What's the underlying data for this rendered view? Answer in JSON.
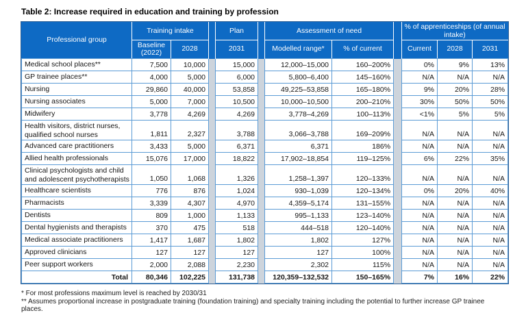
{
  "page": {
    "title": "Table 2: Increase required in education and training by profession"
  },
  "table": {
    "header": {
      "professional_group": "Professional group",
      "training_intake": "Training intake",
      "baseline": "Baseline (2022)",
      "col_2028": "2028",
      "plan": "Plan",
      "plan_2031": "2031",
      "assessment": "Assessment of need",
      "modelled_range": "Modelled range*",
      "pct_of_current": "% of current",
      "apprenticeships": "% of apprenticeships (of annual intake)",
      "appr_current": "Current",
      "appr_2028": "2028",
      "appr_2031": "2031"
    },
    "rows": [
      {
        "label": "Medical school places**",
        "baseline": "7,500",
        "y2028": "10,000",
        "plan2031": "15,000",
        "modelled": "12,000–15,000",
        "pct_current": "160–200%",
        "appr_current": "0%",
        "appr_2028": "9%",
        "appr_2031": "13%"
      },
      {
        "label": "GP trainee places**",
        "baseline": "4,000",
        "y2028": "5,000",
        "plan2031": "6,000",
        "modelled": "5,800–6,400",
        "pct_current": "145–160%",
        "appr_current": "N/A",
        "appr_2028": "N/A",
        "appr_2031": "N/A"
      },
      {
        "label": "Nursing",
        "baseline": "29,860",
        "y2028": "40,000",
        "plan2031": "53,858",
        "modelled": "49,225–53,858",
        "pct_current": "165–180%",
        "appr_current": "9%",
        "appr_2028": "20%",
        "appr_2031": "28%"
      },
      {
        "label": "Nursing associates",
        "baseline": "5,000",
        "y2028": "7,000",
        "plan2031": "10,500",
        "modelled": "10,000–10,500",
        "pct_current": "200–210%",
        "appr_current": "30%",
        "appr_2028": "50%",
        "appr_2031": "50%"
      },
      {
        "label": "Midwifery",
        "baseline": "3,778",
        "y2028": "4,269",
        "plan2031": "4,269",
        "modelled": "3,778–4,269",
        "pct_current": "100–113%",
        "appr_current": "<1%",
        "appr_2028": "5%",
        "appr_2031": "5%"
      },
      {
        "label": "Health visitors, district nurses, qualified school nurses",
        "baseline": "1,811",
        "y2028": "2,327",
        "plan2031": "3,788",
        "modelled": "3,066–3,788",
        "pct_current": "169–209%",
        "appr_current": "N/A",
        "appr_2028": "N/A",
        "appr_2031": "N/A"
      },
      {
        "label": "Advanced care practitioners",
        "baseline": "3,433",
        "y2028": "5,000",
        "plan2031": "6,371",
        "modelled": "6,371",
        "pct_current": "186%",
        "appr_current": "N/A",
        "appr_2028": "N/A",
        "appr_2031": "N/A"
      },
      {
        "label": "Allied health professionals",
        "baseline": "15,076",
        "y2028": "17,000",
        "plan2031": "18,822",
        "modelled": "17,902–18,854",
        "pct_current": "119–125%",
        "appr_current": "6%",
        "appr_2028": "22%",
        "appr_2031": "35%"
      },
      {
        "label": "Clinical psychologists and child and adolescent psychotherapists",
        "baseline": "1,050",
        "y2028": "1,068",
        "plan2031": "1,326",
        "modelled": "1,258–1,397",
        "pct_current": "120–133%",
        "appr_current": "N/A",
        "appr_2028": "N/A",
        "appr_2031": "N/A"
      },
      {
        "label": "Healthcare scientists",
        "baseline": "776",
        "y2028": "876",
        "plan2031": "1,024",
        "modelled": "930–1,039",
        "pct_current": "120–134%",
        "appr_current": "0%",
        "appr_2028": "20%",
        "appr_2031": "40%"
      },
      {
        "label": "Pharmacists",
        "baseline": "3,339",
        "y2028": "4,307",
        "plan2031": "4,970",
        "modelled": "4,359–5,174",
        "pct_current": "131–155%",
        "appr_current": "N/A",
        "appr_2028": "N/A",
        "appr_2031": "N/A"
      },
      {
        "label": "Dentists",
        "baseline": "809",
        "y2028": "1,000",
        "plan2031": "1,133",
        "modelled": "995–1,133",
        "pct_current": "123–140%",
        "appr_current": "N/A",
        "appr_2028": "N/A",
        "appr_2031": "N/A"
      },
      {
        "label": "Dental hygienists and therapists",
        "baseline": "370",
        "y2028": "475",
        "plan2031": "518",
        "modelled": "444–518",
        "pct_current": "120–140%",
        "appr_current": "N/A",
        "appr_2028": "N/A",
        "appr_2031": "N/A"
      },
      {
        "label": "Medical associate practitioners",
        "baseline": "1,417",
        "y2028": "1,687",
        "plan2031": "1,802",
        "modelled": "1,802",
        "pct_current": "127%",
        "appr_current": "N/A",
        "appr_2028": "N/A",
        "appr_2031": "N/A"
      },
      {
        "label": "Approved clinicians",
        "baseline": "127",
        "y2028": "127",
        "plan2031": "127",
        "modelled": "127",
        "pct_current": "100%",
        "appr_current": "N/A",
        "appr_2028": "N/A",
        "appr_2031": "N/A"
      },
      {
        "label": "Peer support workers",
        "baseline": "2,000",
        "y2028": "2,088",
        "plan2031": "2,230",
        "modelled": "2,302",
        "pct_current": "115%",
        "appr_current": "N/A",
        "appr_2028": "N/A",
        "appr_2031": "N/A"
      }
    ],
    "total": {
      "label": "Total",
      "baseline": "80,346",
      "y2028": "102,225",
      "plan2031": "131,738",
      "modelled": "120,359–132,532",
      "pct_current": "150–165%",
      "appr_current": "7%",
      "appr_2028": "16%",
      "appr_2031": "22%"
    }
  },
  "footnotes": [
    "* For most professions maximum level is reached by 2030/31",
    "** Assumes proportional increase in postgraduate training (foundation training) and specialty training including the potential to further increase GP trainee places."
  ]
}
